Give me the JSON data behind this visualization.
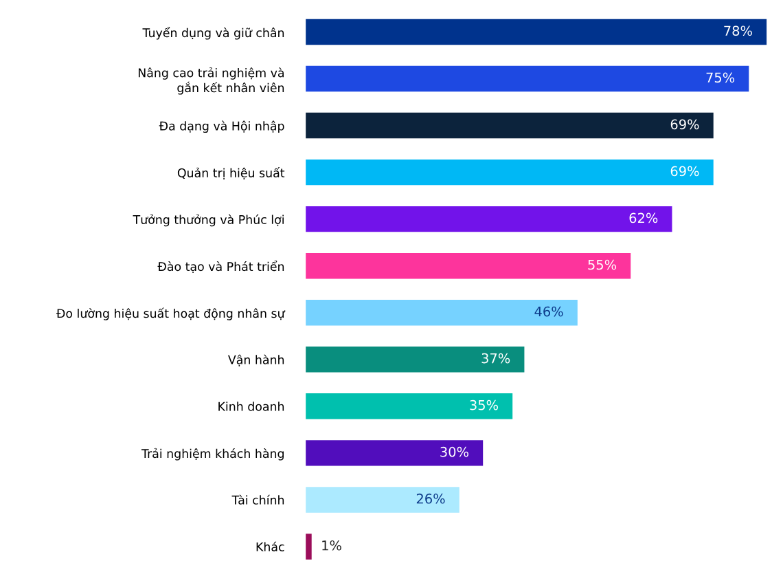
{
  "chart_data": {
    "type": "bar",
    "orientation": "horizontal",
    "data_labels": true,
    "categories": [
      "Tuyển dụng và giữ chân",
      "Nâng cao trải nghiệm và\ngắn kết nhân viên",
      "Đa dạng và Hội nhập",
      "Quản trị hiệu suất",
      "Tưởng thưởng và Phúc lợi",
      "Đào tạo và Phát triển",
      "Đo lường hiệu suất hoạt động nhân sự",
      "Vận hành",
      "Kinh doanh",
      "Trải nghiệm khách hàng",
      "Tài chính",
      "Khác"
    ],
    "values": [
      78,
      75,
      69,
      69,
      62,
      55,
      46,
      37,
      35,
      30,
      26,
      1
    ],
    "value_labels": [
      "78%",
      "75%",
      "69%",
      "69%",
      "62%",
      "55%",
      "46%",
      "37%",
      "35%",
      "30%",
      "26%",
      "1%"
    ],
    "colors": [
      "#00338d",
      "#1e49e2",
      "#0c233c",
      "#00b8f5",
      "#7213ea",
      "#fd349c",
      "#76d2ff",
      "#098e7e",
      "#00c0ae",
      "#510dbc",
      "#acEAFF",
      "#9b0d5a"
    ]
  }
}
